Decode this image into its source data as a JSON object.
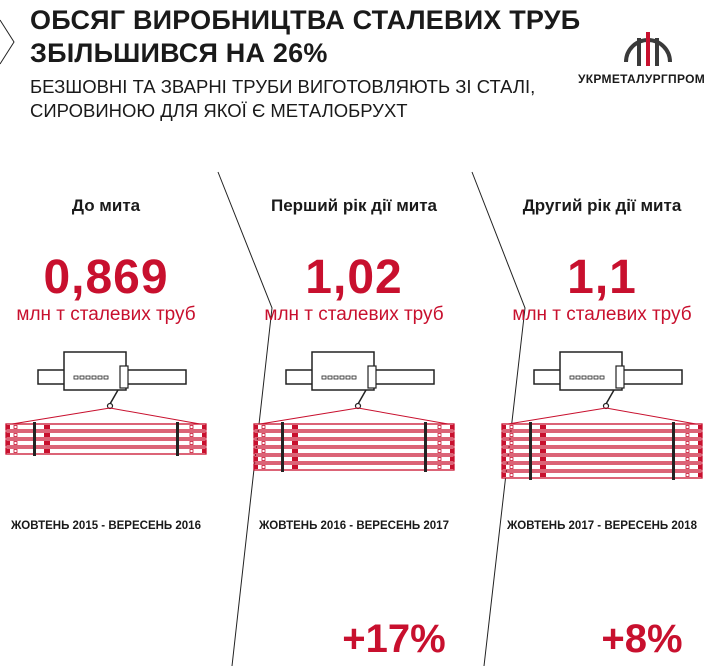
{
  "header": {
    "title_line1": "ОБСЯГ ВИРОБНИЦТВА СТАЛЕВИХ ТРУБ",
    "title_line2": "ЗБІЛЬШИВСЯ НА 26%",
    "subtitle_line1": "БЕЗШОВНІ ТА ЗВАРНІ ТРУБИ ВИГОТОВЛЯЮТЬ ЗІ СТАЛІ,",
    "subtitle_line2": "СИРОВИНОЮ ДЛЯ ЯКОЇ Є МЕТАЛОБРУХТ"
  },
  "logo": {
    "text": "УКРМЕТАЛУРГПРОМ",
    "icon": "ukrmetalurgprom-logo-icon"
  },
  "colors": {
    "accent": "#c8102e",
    "text": "#1a1a1a"
  },
  "columns": [
    {
      "label": "До мита",
      "value": "0,869",
      "unit": "млн т сталевих труб",
      "period": "ЖОВТЕНЬ 2015 - ВЕРЕСЕНЬ 2016",
      "growth": "",
      "pipe_rows": 4
    },
    {
      "label": "Перший рік дії мита",
      "value": "1,02",
      "unit": "млн т сталевих труб",
      "period": "ЖОВТЕНЬ 2016 - ВЕРЕСЕНЬ 2017",
      "growth": "+17%",
      "pipe_rows": 6
    },
    {
      "label": "Другий рік дії мита",
      "value": "1,1",
      "unit": "млн т сталевих труб",
      "period": "ЖОВТЕНЬ 2017 - ВЕРЕСЕНЬ 2018",
      "growth": "+8%",
      "pipe_rows": 7
    }
  ]
}
